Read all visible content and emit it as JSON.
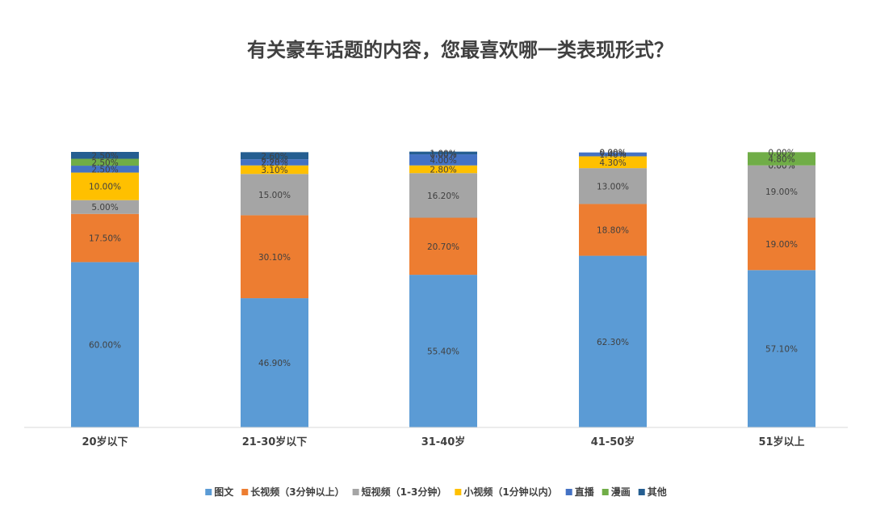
{
  "chart_data": {
    "type": "bar",
    "stacked": true,
    "title": "有关豪车话题的内容，您最喜欢哪一类表现形式？",
    "categories": [
      "20岁以下",
      "21-30岁以下",
      "31-40岁",
      "41-50岁",
      "51岁以上"
    ],
    "ylim": [
      0,
      100
    ],
    "grid": false,
    "legend_position": "bottom",
    "series": [
      {
        "name": "图文",
        "color": "#5B9BD5",
        "values": [
          60.0,
          46.9,
          55.4,
          62.3,
          57.1
        ],
        "labels": [
          "60.00%",
          "46.90%",
          "55.40%",
          "62.30%",
          "57.10%"
        ]
      },
      {
        "name": "长视频（3分钟以上）",
        "color": "#ED7D31",
        "values": [
          17.5,
          30.1,
          20.7,
          18.8,
          19.0
        ],
        "labels": [
          "17.50%",
          "30.10%",
          "20.70%",
          "18.80%",
          "19.00%"
        ]
      },
      {
        "name": "短视频（1-3分钟）",
        "color": "#A5A5A5",
        "values": [
          5.0,
          15.0,
          16.2,
          13.0,
          19.0
        ],
        "labels": [
          "5.00%",
          "15.00%",
          "16.20%",
          "13.00%",
          "19.00%"
        ]
      },
      {
        "name": "小视频（1分钟以内）",
        "color": "#FFC000",
        "values": [
          10.0,
          3.1,
          2.8,
          4.3,
          0.0
        ],
        "labels": [
          "10.00%",
          "3.10%",
          "2.80%",
          "4.30%",
          "0.00%"
        ]
      },
      {
        "name": "直播",
        "color": "#4472C4",
        "values": [
          2.5,
          2.2,
          4.0,
          1.4,
          0.0
        ],
        "labels": [
          "2.50%",
          "2.20%",
          "4.00%",
          "1.40%",
          "0.00%"
        ]
      },
      {
        "name": "漫画",
        "color": "#70AD47",
        "values": [
          2.5,
          0.0,
          0.0,
          0.0,
          4.8
        ],
        "labels": [
          "2.50%",
          "0.00%",
          "0.00%",
          "0.00%",
          "4.80%"
        ]
      },
      {
        "name": "其他",
        "color": "#255E91",
        "values": [
          2.5,
          2.6,
          1.0,
          0.0,
          0.0
        ],
        "labels": [
          "2.50%",
          "2.60%",
          "1.00%",
          "0.00%",
          "0.00%"
        ]
      }
    ]
  }
}
